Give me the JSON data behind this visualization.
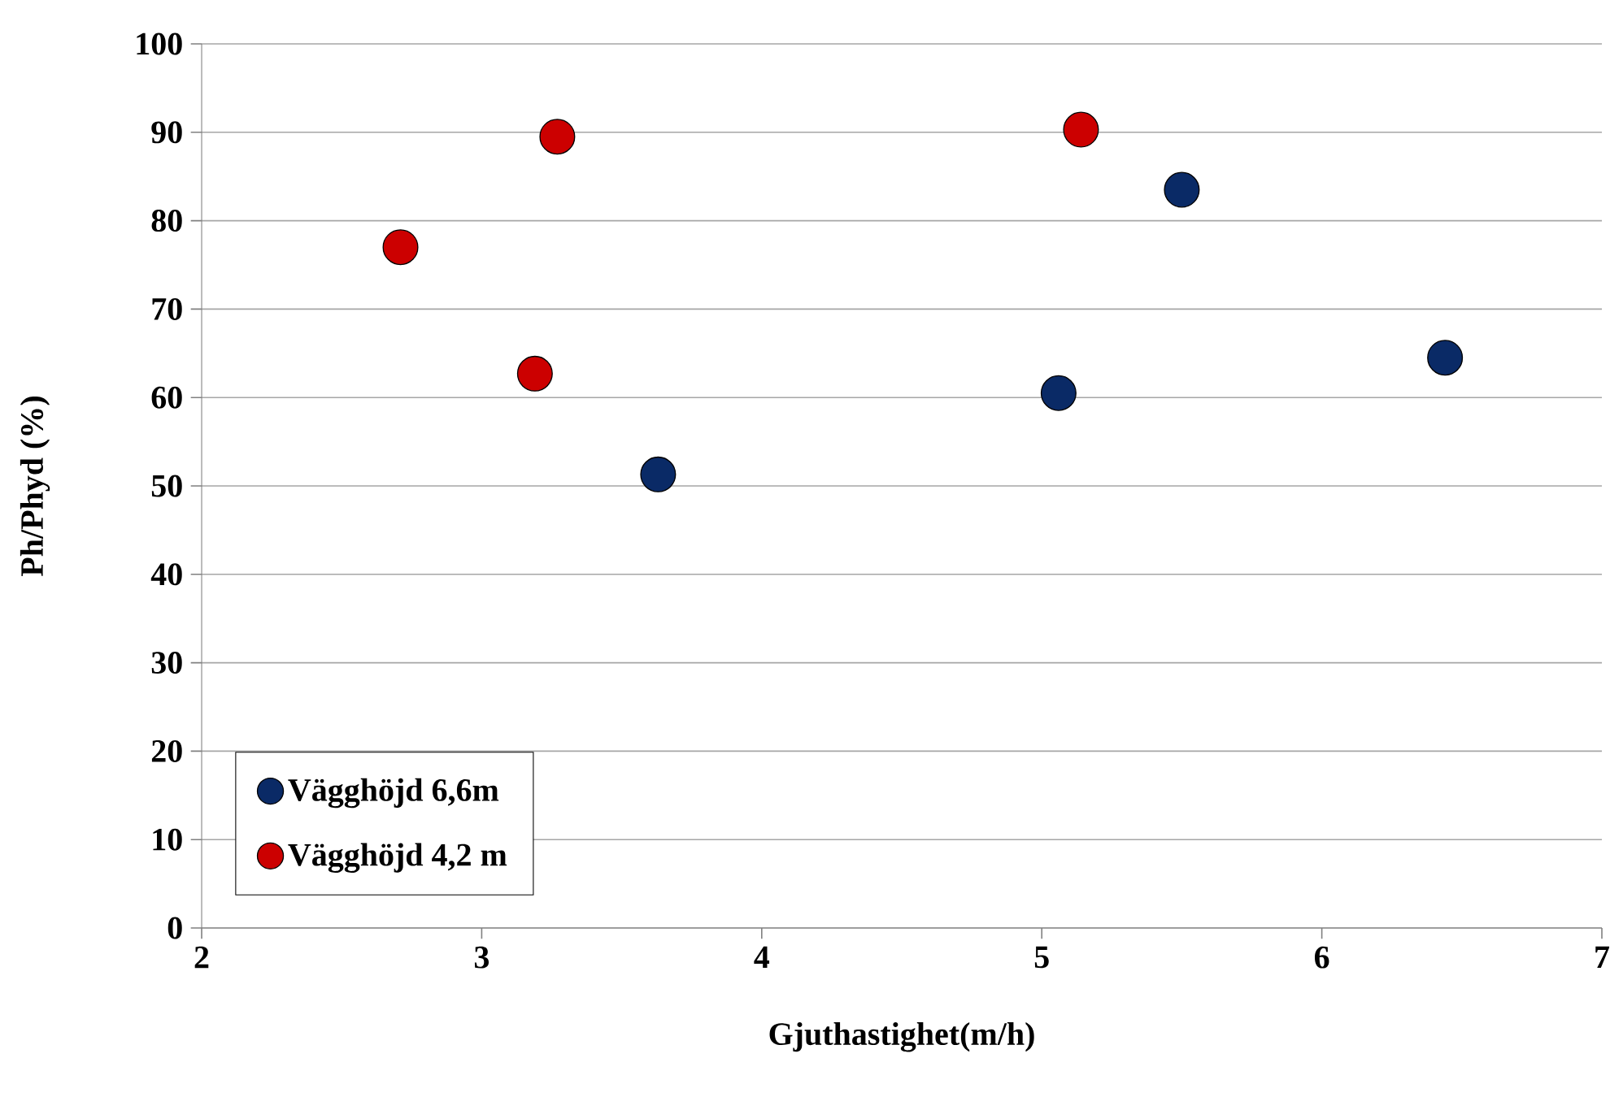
{
  "chart_data": {
    "type": "scatter",
    "xlabel": "Gjuthastighet(m/h)",
    "ylabel": "Ph/Phyd (%)",
    "xlim": [
      2,
      7
    ],
    "xticks": [
      2,
      3,
      4,
      5,
      6,
      7
    ],
    "ylim": [
      0,
      100
    ],
    "yticks": [
      0,
      10,
      20,
      30,
      40,
      50,
      60,
      70,
      80,
      90,
      100
    ],
    "grid": "y",
    "legend": "bottom left",
    "marker": "circle",
    "series": [
      {
        "name": "Vägghöjd 6,6m",
        "color": "#0a2a66",
        "x": [
          3.63,
          5.06,
          5.5,
          6.44
        ],
        "values": [
          51.3,
          60.5,
          83.5,
          64.5
        ]
      },
      {
        "name": "Vägghöjd 4,2 m",
        "color": "#cc0000",
        "x": [
          2.71,
          3.19,
          3.27,
          5.14
        ],
        "values": [
          77.0,
          62.7,
          89.5,
          90.3
        ]
      }
    ]
  }
}
